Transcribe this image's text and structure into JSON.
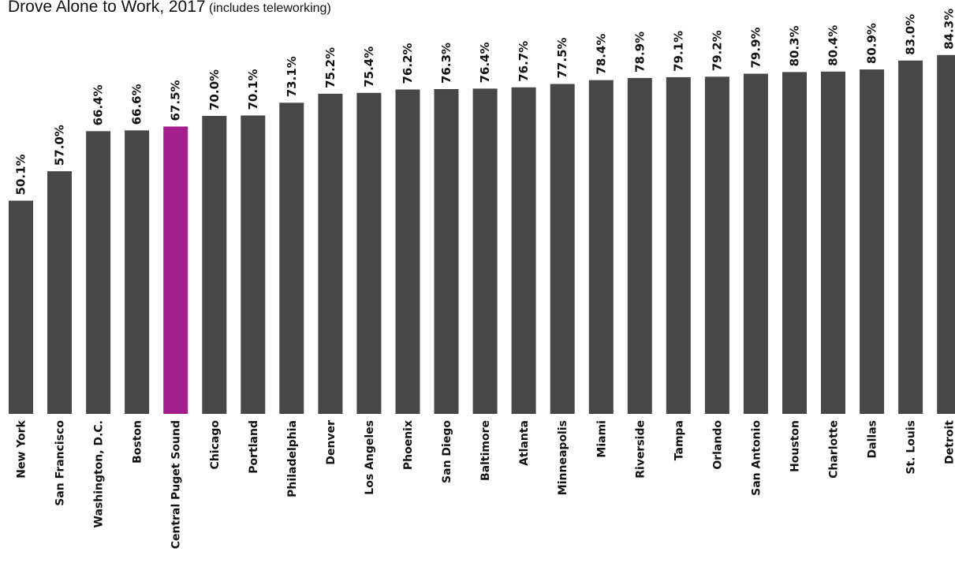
{
  "chart_data": {
    "type": "bar",
    "title": "Drove Alone to Work, 2017",
    "subtitle": "(includes teleworking)",
    "categories": [
      "New York",
      "San Francisco",
      "Washington, D.C.",
      "Boston",
      "Central Puget Sound",
      "Chicago",
      "Portland",
      "Philadelphia",
      "Denver",
      "Los Angeles",
      "Phoenix",
      "San Diego",
      "Baltimore",
      "Atlanta",
      "Minneapolis",
      "Miami",
      "Riverside",
      "Tampa",
      "Orlando",
      "San Antonio",
      "Houston",
      "Charlotte",
      "Dallas",
      "St. Louis",
      "Detroit"
    ],
    "values": [
      50.1,
      57.0,
      66.4,
      66.6,
      67.5,
      70.0,
      70.1,
      73.1,
      75.2,
      75.4,
      76.2,
      76.3,
      76.4,
      76.7,
      77.5,
      78.4,
      78.9,
      79.1,
      79.2,
      79.9,
      80.3,
      80.4,
      80.9,
      83.0,
      84.3
    ],
    "value_labels": [
      "50.1%",
      "57.0%",
      "66.4%",
      "66.6%",
      "67.5%",
      "70.0%",
      "70.1%",
      "73.1%",
      "75.2%",
      "75.4%",
      "76.2%",
      "76.3%",
      "76.4%",
      "76.7%",
      "77.5%",
      "78.4%",
      "78.9%",
      "79.1%",
      "79.2%",
      "79.9%",
      "80.3%",
      "80.4%",
      "80.9%",
      "83.0%",
      "84.3%"
    ],
    "highlight_category": "Central Puget Sound",
    "colors": {
      "default": "#474747",
      "highlight": "#a21f8d"
    },
    "ylim": [
      0,
      100
    ],
    "grid": false,
    "legend": "none"
  }
}
